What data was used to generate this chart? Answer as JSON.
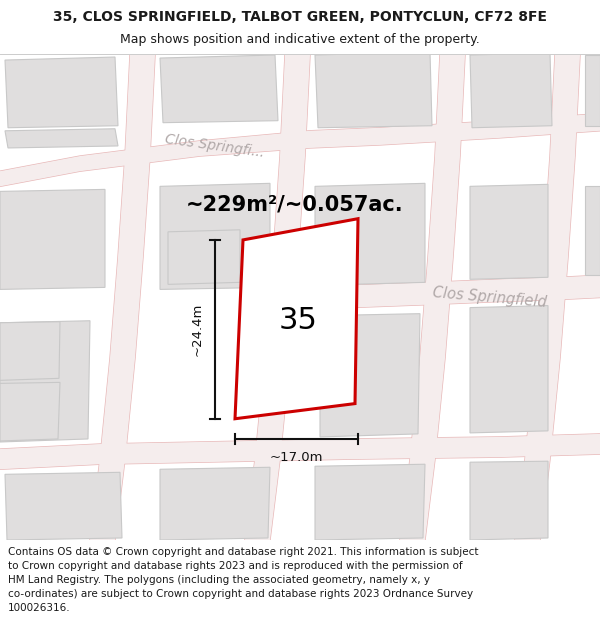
{
  "title_line1": "35, CLOS SPRINGFIELD, TALBOT GREEN, PONTYCLUN, CF72 8FE",
  "title_line2": "Map shows position and indicative extent of the property.",
  "footer_text": "Contains OS data © Crown copyright and database right 2021. This information is subject to Crown copyright and database rights 2023 and is reproduced with the permission of HM Land Registry. The polygons (including the associated geometry, namely x, y co-ordinates) are subject to Crown copyright and database rights 2023 Ordnance Survey 100026316.",
  "area_text": "~229m²/~0.057ac.",
  "width_label": "~17.0m",
  "height_label": "~24.4m",
  "plot_number": "35",
  "map_bg": "#f0efee",
  "building_fill": "#e0dede",
  "building_edge": "#c8c8c8",
  "road_line_color": "#e8b8b8",
  "plot_outline": "#cc0000",
  "street_label_color": "#b0a8a8",
  "title_color": "#1a1a1a",
  "footer_color": "#1a1a1a",
  "dim_line_color": "#111111"
}
